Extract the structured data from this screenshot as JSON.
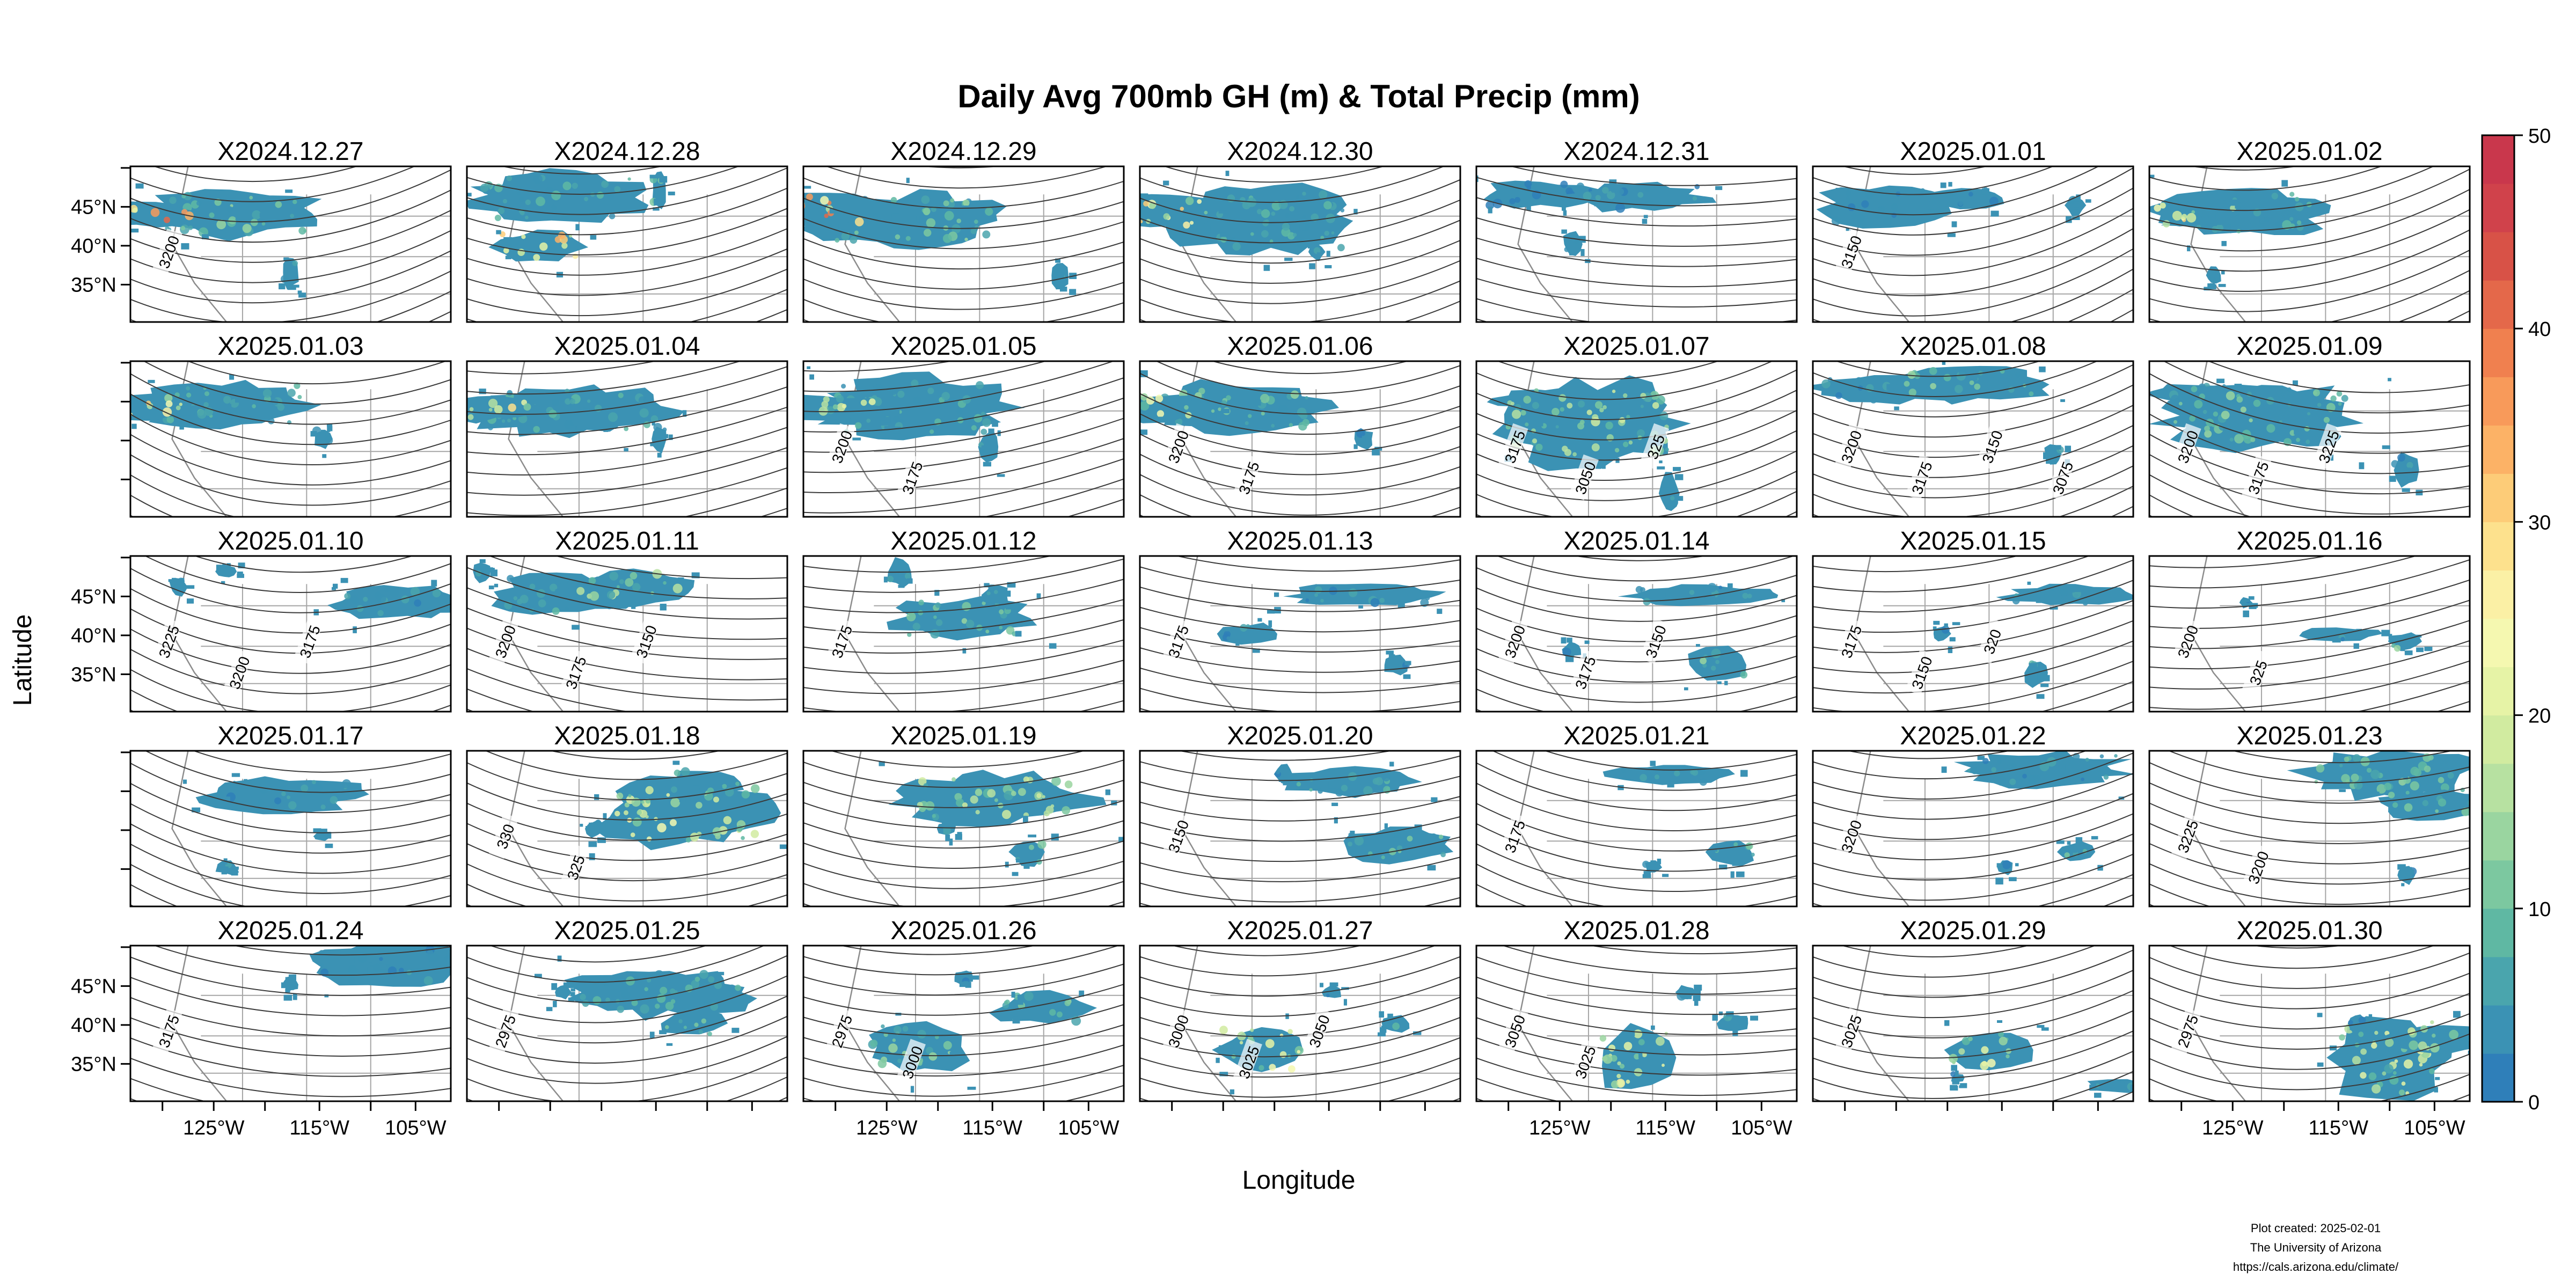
{
  "chart_data": {
    "type": "heatmap",
    "title": "Daily Avg 700mb GH (m) & Total Precip (mm)",
    "xlabel": "Longitude",
    "ylabel": "Latitude",
    "layout": {
      "rows": 5,
      "cols": 7
    },
    "x_ticks": [
      "125°W",
      "115°W",
      "105°W"
    ],
    "y_ticks": [
      "45°N",
      "40°N",
      "35°N"
    ],
    "colorbar": {
      "range": [
        0,
        50
      ],
      "ticks": [
        "0",
        "10",
        "20",
        "30",
        "40",
        "50"
      ],
      "colors": [
        "#2f7fb9",
        "#3b92b4",
        "#4aa5ad",
        "#5fb8a3",
        "#7cc8a0",
        "#9ad5a0",
        "#b7e1a1",
        "#d1eba0",
        "#e6f3a6",
        "#f5f8b0",
        "#fbf0a5",
        "#fde18d",
        "#fdcc78",
        "#fcb266",
        "#f89a5a",
        "#f0804f",
        "#e4684a",
        "#d85247",
        "#d0424b",
        "#c9374c"
      ]
    },
    "panels": [
      {
        "label": "X2024.12.27",
        "contours": [
          "3200"
        ],
        "precip": [
          [
            0.33,
            0.3,
            0.14,
            0.55,
            0.2
          ],
          [
            0.05,
            0.3,
            0.08,
            0.32,
            0.65
          ],
          [
            0.5,
            0.68,
            0.09,
            0.06,
            0.15
          ]
        ]
      },
      {
        "label": "X2024.12.28",
        "contours": [],
        "precip": [
          [
            0.28,
            0.2,
            0.15,
            0.55,
            0.15
          ],
          [
            0.22,
            0.52,
            0.1,
            0.28,
            0.55
          ],
          [
            0.6,
            0.15,
            0.12,
            0.05,
            0.2
          ]
        ]
      },
      {
        "label": "X2024.12.29",
        "contours": [],
        "precip": [
          [
            0.32,
            0.35,
            0.16,
            0.62,
            0.2
          ],
          [
            0.08,
            0.28,
            0.1,
            0.28,
            0.65
          ],
          [
            0.8,
            0.7,
            0.08,
            0.06,
            0.15
          ]
        ]
      },
      {
        "label": "X2024.12.30",
        "contours": [],
        "precip": [
          [
            0.38,
            0.35,
            0.2,
            0.6,
            0.15
          ],
          [
            0.08,
            0.28,
            0.12,
            0.3,
            0.5
          ],
          [
            0.55,
            0.55,
            0.05,
            0.05,
            0.1
          ]
        ]
      },
      {
        "label": "X2024.12.31",
        "contours": [],
        "precip": [
          [
            0.2,
            0.18,
            0.08,
            0.38,
            0.05
          ],
          [
            0.5,
            0.2,
            0.08,
            0.45,
            0.1
          ],
          [
            0.3,
            0.5,
            0.07,
            0.06,
            0.08
          ]
        ]
      },
      {
        "label": "X2025.01.01",
        "contours": [
          "3150"
        ],
        "precip": [
          [
            0.22,
            0.25,
            0.12,
            0.4,
            0.08
          ],
          [
            0.48,
            0.2,
            0.06,
            0.25,
            0.05
          ],
          [
            0.82,
            0.25,
            0.06,
            0.06,
            0.06
          ]
        ]
      },
      {
        "label": "X2025.01.02",
        "contours": [],
        "precip": [
          [
            0.3,
            0.3,
            0.14,
            0.5,
            0.15
          ],
          [
            0.15,
            0.3,
            0.08,
            0.3,
            0.5
          ],
          [
            0.2,
            0.7,
            0.05,
            0.05,
            0.08
          ]
        ]
      },
      {
        "label": "X2025.01.03",
        "contours": [],
        "precip": [
          [
            0.3,
            0.28,
            0.14,
            0.55,
            0.15
          ],
          [
            0.05,
            0.3,
            0.08,
            0.3,
            0.5
          ],
          [
            0.6,
            0.5,
            0.06,
            0.06,
            0.08
          ]
        ]
      },
      {
        "label": "X2025.01.04",
        "contours": [],
        "precip": [
          [
            0.32,
            0.32,
            0.15,
            0.65,
            0.15
          ],
          [
            0.05,
            0.3,
            0.08,
            0.35,
            0.45
          ],
          [
            0.6,
            0.5,
            0.08,
            0.05,
            0.08
          ]
        ]
      },
      {
        "label": "X2025.01.05",
        "contours": [
          "3200",
          "3175"
        ],
        "precip": [
          [
            0.35,
            0.3,
            0.18,
            0.6,
            0.15
          ],
          [
            0.05,
            0.3,
            0.08,
            0.4,
            0.35
          ],
          [
            0.58,
            0.55,
            0.1,
            0.06,
            0.12
          ]
        ]
      },
      {
        "label": "X2025.01.06",
        "contours": [
          "3200",
          "3175"
        ],
        "precip": [
          [
            0.3,
            0.3,
            0.15,
            0.55,
            0.2
          ],
          [
            0.05,
            0.3,
            0.08,
            0.32,
            0.45
          ],
          [
            0.7,
            0.5,
            0.06,
            0.06,
            0.1
          ]
        ]
      },
      {
        "label": "X2025.01.07",
        "contours": [
          "3175",
          "3050",
          "325"
        ],
        "precip": [
          [
            0.25,
            0.25,
            0.06,
            0.4,
            0.1
          ],
          [
            0.35,
            0.4,
            0.25,
            0.6,
            0.3
          ],
          [
            0.6,
            0.85,
            0.12,
            0.06,
            0.1
          ]
        ]
      },
      {
        "label": "X2025.01.08",
        "contours": [
          "3200",
          "3175",
          "3150",
          "3075"
        ],
        "precip": [
          [
            0.25,
            0.18,
            0.08,
            0.5,
            0.1
          ],
          [
            0.5,
            0.15,
            0.1,
            0.5,
            0.2
          ],
          [
            0.75,
            0.6,
            0.06,
            0.06,
            0.1
          ]
        ]
      },
      {
        "label": "X2025.01.09",
        "contours": [
          "3200",
          "3175",
          "3225"
        ],
        "precip": [
          [
            0.2,
            0.2,
            0.05,
            0.4,
            0.1
          ],
          [
            0.35,
            0.35,
            0.2,
            0.65,
            0.2
          ],
          [
            0.8,
            0.7,
            0.1,
            0.08,
            0.1
          ]
        ]
      },
      {
        "label": "X2025.01.10",
        "contours": [
          "3225",
          "3200",
          "3175"
        ],
        "precip": [
          [
            0.85,
            0.3,
            0.1,
            0.5,
            0.1
          ],
          [
            0.3,
            0.1,
            0.04,
            0.06,
            0.1
          ],
          [
            0.15,
            0.2,
            0.05,
            0.06,
            0.1
          ]
        ]
      },
      {
        "label": "X2025.01.11",
        "contours": [
          "3200",
          "3175",
          "3150"
        ],
        "precip": [
          [
            0.3,
            0.25,
            0.12,
            0.45,
            0.15
          ],
          [
            0.5,
            0.2,
            0.1,
            0.4,
            0.3
          ],
          [
            0.05,
            0.1,
            0.06,
            0.06,
            0.1
          ]
        ]
      },
      {
        "label": "X2025.01.12",
        "contours": [
          "3175"
        ],
        "precip": [
          [
            0.3,
            0.1,
            0.08,
            0.08,
            0.1
          ],
          [
            0.5,
            0.4,
            0.12,
            0.45,
            0.2
          ],
          [
            0.6,
            0.25,
            0.06,
            0.08,
            0.1
          ]
        ]
      },
      {
        "label": "X2025.01.13",
        "contours": [
          "3175"
        ],
        "precip": [
          [
            0.7,
            0.25,
            0.06,
            0.5,
            0.1
          ],
          [
            0.35,
            0.5,
            0.06,
            0.2,
            0.1
          ],
          [
            0.8,
            0.7,
            0.06,
            0.08,
            0.1
          ]
        ]
      },
      {
        "label": "X2025.01.14",
        "contours": [
          "3200",
          "3175",
          "3150"
        ],
        "precip": [
          [
            0.7,
            0.25,
            0.06,
            0.5,
            0.1
          ],
          [
            0.75,
            0.7,
            0.1,
            0.2,
            0.2
          ],
          [
            0.3,
            0.6,
            0.05,
            0.06,
            0.05
          ]
        ]
      },
      {
        "label": "X2025.01.15",
        "contours": [
          "3175",
          "3150",
          "320"
        ],
        "precip": [
          [
            0.8,
            0.25,
            0.06,
            0.4,
            0.1
          ],
          [
            0.7,
            0.75,
            0.08,
            0.08,
            0.2
          ],
          [
            0.4,
            0.5,
            0.05,
            0.06,
            0.05
          ]
        ]
      },
      {
        "label": "X2025.01.16",
        "contours": [
          "3200",
          "325"
        ],
        "precip": [
          [
            0.6,
            0.5,
            0.04,
            0.25,
            0.1
          ],
          [
            0.8,
            0.55,
            0.05,
            0.1,
            0.2
          ],
          [
            0.3,
            0.3,
            0.03,
            0.04,
            0.05
          ]
        ]
      },
      {
        "label": "X2025.01.17",
        "contours": [],
        "precip": [
          [
            0.48,
            0.28,
            0.1,
            0.5,
            0.1
          ],
          [
            0.3,
            0.75,
            0.04,
            0.08,
            0.1
          ],
          [
            0.6,
            0.55,
            0.03,
            0.05,
            0.05
          ]
        ]
      },
      {
        "label": "X2025.01.18",
        "contours": [
          "330",
          "325"
        ],
        "precip": [
          [
            0.68,
            0.4,
            0.2,
            0.55,
            0.4
          ],
          [
            0.75,
            0.2,
            0.08,
            0.25,
            0.2
          ],
          [
            0.4,
            0.5,
            0.05,
            0.06,
            0.1
          ]
        ]
      },
      {
        "label": "X2025.01.19",
        "contours": [],
        "precip": [
          [
            0.6,
            0.3,
            0.15,
            0.6,
            0.3
          ],
          [
            0.7,
            0.65,
            0.08,
            0.12,
            0.2
          ],
          [
            0.45,
            0.5,
            0.04,
            0.06,
            0.1
          ]
        ]
      },
      {
        "label": "X2025.01.20",
        "contours": [
          "3150"
        ],
        "precip": [
          [
            0.65,
            0.2,
            0.08,
            0.4,
            0.15
          ],
          [
            0.8,
            0.6,
            0.1,
            0.35,
            0.2
          ],
          [
            0.45,
            0.15,
            0.06,
            0.06,
            0.05
          ]
        ]
      },
      {
        "label": "X2025.01.21",
        "contours": [
          "3175"
        ],
        "precip": [
          [
            0.6,
            0.15,
            0.06,
            0.35,
            0.1
          ],
          [
            0.8,
            0.65,
            0.08,
            0.15,
            0.2
          ],
          [
            0.55,
            0.75,
            0.04,
            0.05,
            0.05
          ]
        ]
      },
      {
        "label": "X2025.01.22",
        "contours": [
          "3200"
        ],
        "precip": [
          [
            0.72,
            0.12,
            0.1,
            0.55,
            0.1
          ],
          [
            0.82,
            0.65,
            0.06,
            0.12,
            0.2
          ],
          [
            0.6,
            0.75,
            0.04,
            0.05,
            0.05
          ]
        ]
      },
      {
        "label": "X2025.01.23",
        "contours": [
          "3225",
          "3200"
        ],
        "precip": [
          [
            0.75,
            0.15,
            0.14,
            0.55,
            0.2
          ],
          [
            0.9,
            0.35,
            0.08,
            0.4,
            0.2
          ],
          [
            0.8,
            0.8,
            0.05,
            0.06,
            0.05
          ]
        ]
      },
      {
        "label": "X2025.01.24",
        "contours": [
          "3175"
        ],
        "precip": [
          [
            0.8,
            0.12,
            0.12,
            0.5,
            0.1
          ],
          [
            0.85,
            0.05,
            0.08,
            0.3,
            0.1
          ],
          [
            0.5,
            0.25,
            0.04,
            0.05,
            0.05
          ]
        ]
      },
      {
        "label": "X2025.01.25",
        "contours": [
          "2975"
        ],
        "precip": [
          [
            0.6,
            0.3,
            0.14,
            0.6,
            0.15
          ],
          [
            0.7,
            0.5,
            0.08,
            0.2,
            0.2
          ],
          [
            0.3,
            0.3,
            0.04,
            0.05,
            0.05
          ]
        ]
      },
      {
        "label": "X2025.01.26",
        "contours": [
          "2975",
          "3000"
        ],
        "precip": [
          [
            0.35,
            0.65,
            0.16,
            0.32,
            0.25
          ],
          [
            0.75,
            0.4,
            0.1,
            0.3,
            0.2
          ],
          [
            0.5,
            0.2,
            0.04,
            0.06,
            0.05
          ]
        ]
      },
      {
        "label": "X2025.01.27",
        "contours": [
          "3000",
          "3025",
          "3050"
        ],
        "precip": [
          [
            0.38,
            0.67,
            0.15,
            0.28,
            0.4
          ],
          [
            0.8,
            0.5,
            0.05,
            0.1,
            0.2
          ],
          [
            0.6,
            0.3,
            0.04,
            0.06,
            0.05
          ]
        ]
      },
      {
        "label": "X2025.01.28",
        "contours": [
          "3050",
          "3025"
        ],
        "precip": [
          [
            0.5,
            0.72,
            0.2,
            0.26,
            0.4
          ],
          [
            0.8,
            0.5,
            0.05,
            0.1,
            0.2
          ],
          [
            0.65,
            0.3,
            0.04,
            0.06,
            0.05
          ]
        ]
      },
      {
        "label": "X2025.01.29",
        "contours": [
          "3025"
        ],
        "precip": [
          [
            0.55,
            0.67,
            0.12,
            0.28,
            0.4
          ],
          [
            0.95,
            0.9,
            0.04,
            0.2,
            0.2
          ],
          [
            0.45,
            0.85,
            0.03,
            0.04,
            0.05
          ]
        ]
      },
      {
        "label": "X2025.01.30",
        "contours": [
          "2975"
        ],
        "precip": [
          [
            0.75,
            0.72,
            0.26,
            0.38,
            0.35
          ],
          [
            0.9,
            0.6,
            0.08,
            0.3,
            0.3
          ],
          [
            0.65,
            0.5,
            0.06,
            0.06,
            0.05
          ]
        ]
      }
    ]
  },
  "credits": {
    "line1": "Plot created: 2025-02-01",
    "line2": "The University of Arizona",
    "line3": "https://cals.arizona.edu/climate/"
  }
}
